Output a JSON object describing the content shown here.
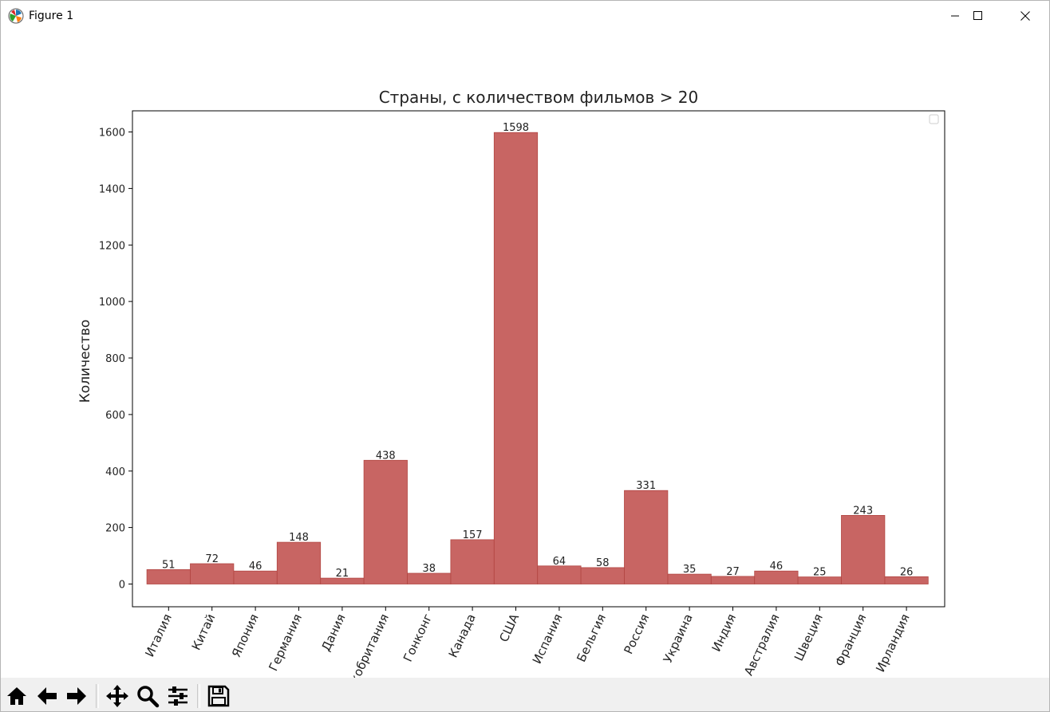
{
  "window": {
    "title": "Figure 1",
    "icons": {
      "app": "matplotlib-icon",
      "minimize": "minimize-icon",
      "maximize": "maximize-icon",
      "close": "close-icon"
    }
  },
  "toolbar": {
    "buttons": [
      {
        "icon": "home-icon"
      },
      {
        "icon": "back-arrow-icon"
      },
      {
        "icon": "forward-arrow-icon"
      },
      {
        "icon": "pan-icon"
      },
      {
        "icon": "zoom-icon"
      },
      {
        "icon": "subplots-icon"
      },
      {
        "icon": "save-icon"
      }
    ]
  },
  "chart_data": {
    "type": "bar",
    "title": "Страны, с количеством фильмов > 20",
    "xlabel": "",
    "ylabel": "Количество",
    "categories": [
      "Италия",
      "Китай",
      "Япония",
      "Германия",
      "Дания",
      "Великобритания",
      "Гонконг",
      "Канада",
      "США",
      "Испания",
      "Бельгия",
      "Россия",
      "Украина",
      "Индия",
      "Австралия",
      "Швеция",
      "Франция",
      "Ирландия"
    ],
    "values": [
      51,
      72,
      46,
      148,
      21,
      438,
      38,
      157,
      1598,
      64,
      58,
      331,
      35,
      27,
      46,
      25,
      243,
      26
    ],
    "ylim": [
      -82,
      1680
    ],
    "yticks": [
      0,
      200,
      400,
      600,
      800,
      1000,
      1200,
      1400,
      1600
    ],
    "bar_color": "#c0504d",
    "grid": false,
    "legend": {
      "location": "top-right",
      "entries": []
    }
  }
}
